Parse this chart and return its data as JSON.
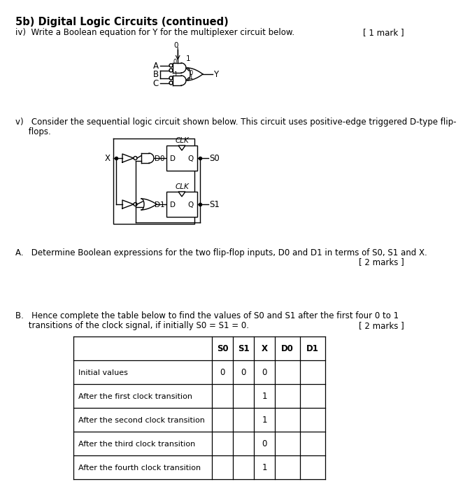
{
  "title": "5b) Digital Logic Circuits (continued)",
  "section_iv_text": "iv)  Write a Boolean equation for Y for the multiplexer circuit below.",
  "mark_iv": "[ 1 mark ]",
  "section_v_line1": "v)   Consider the sequential logic circuit shown below. This circuit uses positive-edge triggered D-type flip-",
  "section_v_line2": "     flops.",
  "section_A_text": "A.   Determine Boolean expressions for the two flip-flop inputs, D0 and D1 in terms of S0, S1 and X.",
  "mark_A": "[ 2 marks ]",
  "section_B_line1": "B.   Hence complete the table below to find the values of S0 and S1 after the first four 0 to 1",
  "section_B_line2": "     transitions of the clock signal, if initially S0 = S1 = 0.",
  "mark_B": "[ 2 marks ]",
  "table_headers": [
    "S0",
    "S1",
    "X",
    "D0",
    "D1"
  ],
  "table_rows": [
    [
      "Initial values",
      "0",
      "0",
      "0",
      "",
      ""
    ],
    [
      "After the first clock transition",
      "",
      "",
      "1",
      "",
      ""
    ],
    [
      "After the second clock transition",
      "",
      "",
      "1",
      "",
      ""
    ],
    [
      "After the third clock transition",
      "",
      "",
      "0",
      "",
      ""
    ],
    [
      "After the fourth clock transition",
      "",
      "",
      "1",
      "",
      ""
    ]
  ],
  "bg_color": "#ffffff",
  "text_color": "#000000"
}
